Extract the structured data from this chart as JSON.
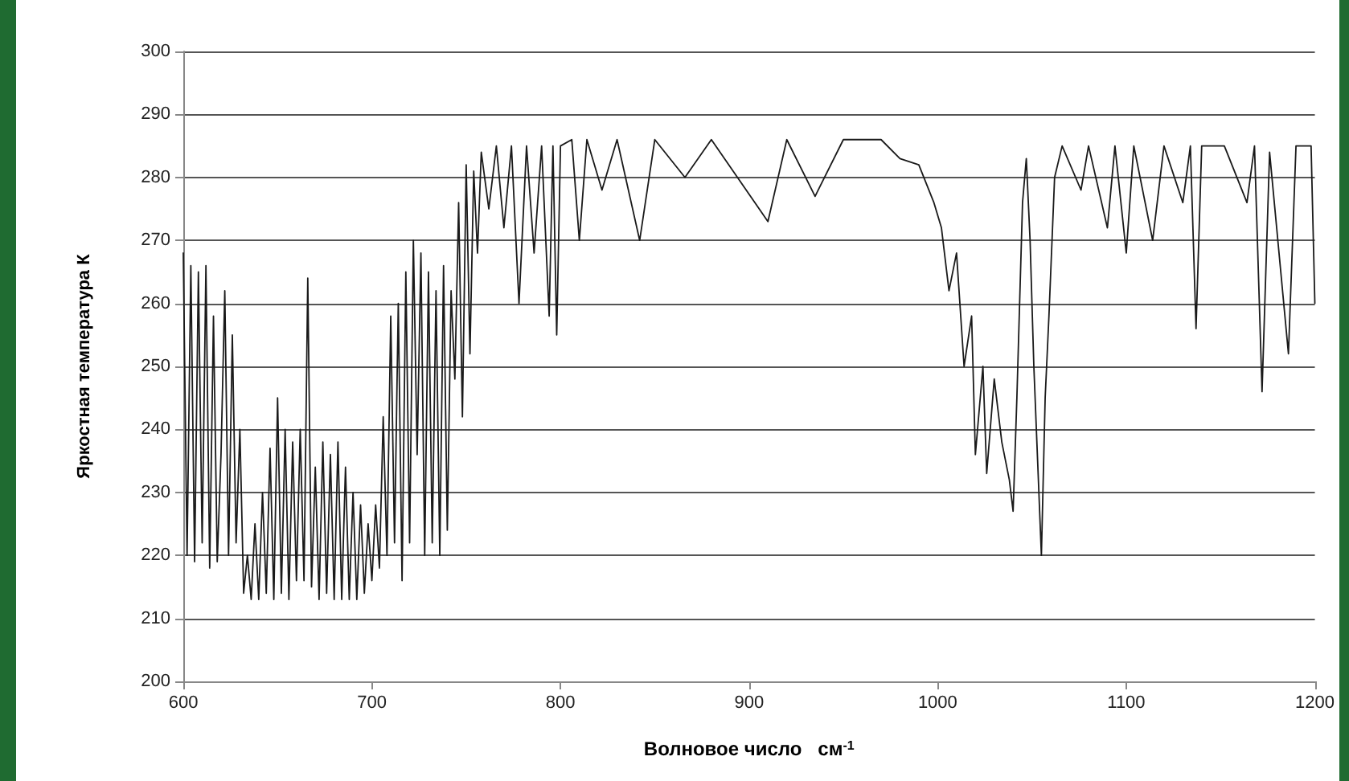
{
  "chart_data": {
    "type": "line",
    "xlabel": "Волновое число   см$^{-1}$",
    "ylabel": "Яркостная температура К",
    "xlim": [
      600,
      1200
    ],
    "xticks": [
      600,
      700,
      800,
      900,
      1000,
      1100,
      1200
    ],
    "ylim": [
      200,
      300
    ],
    "yticks": [
      200,
      210,
      220,
      230,
      240,
      250,
      260,
      270,
      280,
      290,
      300
    ],
    "grid": "y",
    "marker": "none",
    "line_style": "solid",
    "series": [
      {
        "color": "#1a1a1a",
        "x": [
          600,
          602,
          604,
          606,
          608,
          610,
          612,
          614,
          616,
          618,
          620,
          622,
          624,
          626,
          628,
          630,
          632,
          634,
          636,
          638,
          640,
          642,
          644,
          646,
          648,
          650,
          652,
          654,
          656,
          658,
          660,
          662,
          664,
          666,
          668,
          670,
          672,
          674,
          676,
          678,
          680,
          682,
          684,
          686,
          688,
          690,
          692,
          694,
          696,
          698,
          700,
          702,
          704,
          706,
          708,
          710,
          712,
          714,
          716,
          718,
          720,
          722,
          724,
          726,
          728,
          730,
          732,
          734,
          736,
          738,
          740,
          742,
          744,
          746,
          748,
          750,
          752,
          754,
          756,
          758,
          762,
          766,
          770,
          774,
          778,
          782,
          786,
          790,
          794,
          796,
          798,
          800,
          806,
          810,
          814,
          822,
          830,
          842,
          850,
          866,
          880,
          910,
          920,
          935,
          950,
          970,
          980,
          990,
          998,
          1002,
          1006,
          1010,
          1014,
          1018,
          1020,
          1024,
          1026,
          1030,
          1034,
          1038,
          1040,
          1042,
          1045,
          1047,
          1049,
          1051,
          1053,
          1055,
          1057,
          1059,
          1062,
          1066,
          1076,
          1080,
          1090,
          1094,
          1100,
          1104,
          1114,
          1120,
          1130,
          1134,
          1137,
          1140,
          1152,
          1164,
          1168,
          1172,
          1176,
          1186,
          1190,
          1198,
          1200
        ],
        "values": [
          268,
          220,
          266,
          219,
          265,
          222,
          266,
          218,
          258,
          219,
          236,
          262,
          220,
          255,
          222,
          240,
          214,
          220,
          213,
          225,
          213,
          230,
          214,
          237,
          213,
          245,
          214,
          240,
          213,
          238,
          216,
          240,
          216,
          264,
          215,
          234,
          213,
          238,
          214,
          236,
          213,
          238,
          213,
          234,
          213,
          230,
          213,
          228,
          214,
          225,
          216,
          228,
          218,
          242,
          220,
          258,
          222,
          260,
          216,
          265,
          222,
          270,
          236,
          268,
          220,
          265,
          222,
          262,
          220,
          266,
          224,
          262,
          248,
          276,
          242,
          282,
          252,
          281,
          268,
          284,
          275,
          285,
          272,
          285,
          260,
          285,
          268,
          285,
          258,
          285,
          255,
          285,
          286,
          270,
          286,
          278,
          286,
          270,
          286,
          280,
          286,
          273,
          286,
          277,
          286,
          286,
          283,
          282,
          276,
          272,
          262,
          268,
          250,
          258,
          236,
          250,
          233,
          248,
          238,
          232,
          227,
          245,
          276,
          283,
          270,
          250,
          235,
          220,
          245,
          258,
          280,
          285,
          278,
          285,
          272,
          285,
          268,
          285,
          270,
          285,
          276,
          285,
          256,
          285,
          285,
          276,
          285,
          246,
          284,
          252,
          285,
          285,
          260
        ]
      }
    ]
  }
}
